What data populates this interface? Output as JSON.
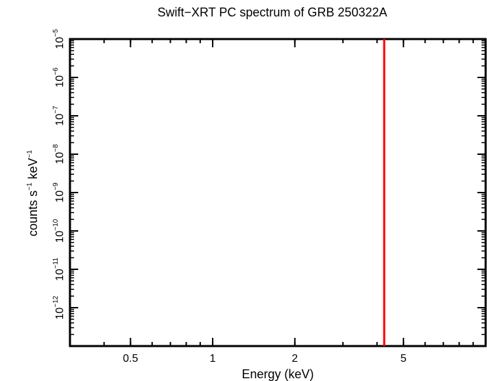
{
  "chart_data": {
    "type": "line",
    "title": "Swift−XRT PC spectrum of GRB 250322A",
    "xlabel": "Energy (keV)",
    "ylabel_parts": {
      "base": "counts s",
      "exp1": "−1",
      "mid": " keV",
      "exp2": "−1"
    },
    "x_scale": "log",
    "y_scale": "log",
    "xlim": [
      0.3,
      10
    ],
    "ylim": [
      1e-13,
      1e-05
    ],
    "x_tick_labels": [
      {
        "value": 0.5,
        "label": "0.5"
      },
      {
        "value": 1,
        "label": "1"
      },
      {
        "value": 2,
        "label": "2"
      },
      {
        "value": 5,
        "label": "5"
      }
    ],
    "y_tick_labels": [
      {
        "value": -12,
        "base": "10",
        "exp": "−12"
      },
      {
        "value": -11,
        "base": "10",
        "exp": "−11"
      },
      {
        "value": -10,
        "base": "10",
        "exp": "−10"
      },
      {
        "value": -9,
        "base": "10",
        "exp": "−9"
      },
      {
        "value": -8,
        "base": "10",
        "exp": "−8"
      },
      {
        "value": -7,
        "base": "10",
        "exp": "−7"
      },
      {
        "value": -6,
        "base": "10",
        "exp": "−6"
      },
      {
        "value": -5,
        "base": "10",
        "exp": "−5"
      }
    ],
    "series": [
      {
        "color": "#ff0000",
        "x": [
          4.25,
          4.25
        ],
        "y": [
          1e-13,
          1e-05
        ]
      }
    ],
    "grid": false
  }
}
